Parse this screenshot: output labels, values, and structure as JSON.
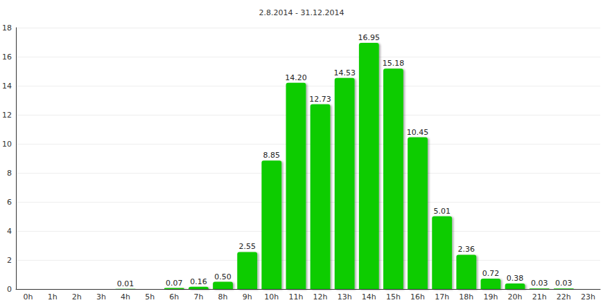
{
  "chart_data": {
    "type": "bar",
    "title": "2.8.2014 - 31.12.2014",
    "categories": [
      "0h",
      "1h",
      "2h",
      "3h",
      "4h",
      "5h",
      "6h",
      "7h",
      "8h",
      "9h",
      "10h",
      "11h",
      "12h",
      "13h",
      "14h",
      "15h",
      "16h",
      "17h",
      "18h",
      "19h",
      "20h",
      "21h",
      "22h",
      "23h"
    ],
    "values": [
      null,
      null,
      null,
      null,
      0.01,
      null,
      0.07,
      0.16,
      0.5,
      2.55,
      8.85,
      14.2,
      12.73,
      14.53,
      16.95,
      15.18,
      10.45,
      5.01,
      2.36,
      0.72,
      0.38,
      0.03,
      0.03,
      null
    ],
    "value_labels": [
      null,
      null,
      null,
      null,
      "0.01",
      null,
      "0.07",
      "0.16",
      "0.50",
      "2.55",
      "8.85",
      "14.20",
      "12.73",
      "14.53",
      "16.95",
      "15.18",
      "10.45",
      "5.01",
      "2.36",
      "0.72",
      "0.38",
      "0.03",
      "0.03",
      null
    ],
    "color": "#11cc00",
    "ylim": [
      0,
      18
    ],
    "yticks": [
      0,
      2,
      4,
      6,
      8,
      10,
      12,
      14,
      16,
      18
    ],
    "grid": true,
    "data_labels": true
  }
}
